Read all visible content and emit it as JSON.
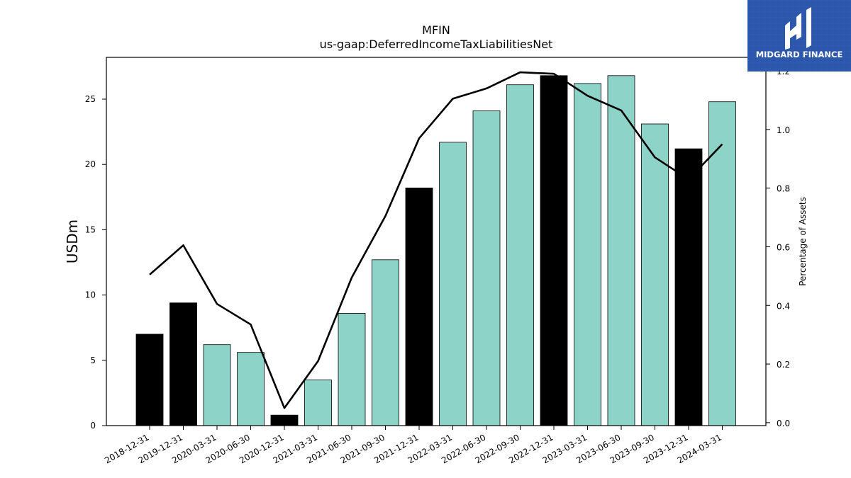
{
  "colors": {
    "annual_bar": "#000000",
    "quarter_bar": "#8dd3c7",
    "line": "#000000",
    "logo_bg": "#2b57ad",
    "logo_fg": "#ffffff"
  },
  "logo": {
    "text": "MIDGARD FINANCE",
    "icon": "midgard-logo-icon"
  },
  "chart_data": {
    "type": "bar",
    "title": "MFIN",
    "subtitle": "us-gaap:DeferredIncomeTaxLiabilitiesNet",
    "xlabel": "",
    "ylabel": "USDm",
    "y2label": "Percentage of Assets",
    "ylim": [
      0,
      28.2
    ],
    "y2lim": [
      -0.01,
      1.246
    ],
    "yticks": [
      0,
      5,
      10,
      15,
      20,
      25
    ],
    "y2ticks": [
      0.0,
      0.2,
      0.4,
      0.6,
      0.8,
      1.0,
      1.2
    ],
    "y2tick_labels": [
      "0.0",
      "0.2",
      "0.4",
      "0.6",
      "0.8",
      "1.0",
      "1.2"
    ],
    "grid": false,
    "categories": [
      "2018-12-31",
      "2019-12-31",
      "2020-03-31",
      "2020-06-30",
      "2020-12-31",
      "2021-03-31",
      "2021-06-30",
      "2021-09-30",
      "2021-12-31",
      "2022-03-31",
      "2022-06-30",
      "2022-09-30",
      "2022-12-31",
      "2023-03-31",
      "2023-06-30",
      "2023-09-30",
      "2023-12-31",
      "2024-03-31"
    ],
    "series": [
      {
        "kind": "bar",
        "axis": "left",
        "values": [
          7.0,
          9.4,
          6.2,
          5.6,
          0.8,
          3.5,
          8.6,
          12.7,
          18.2,
          21.7,
          24.1,
          26.1,
          26.8,
          26.2,
          26.8,
          23.1,
          21.2,
          24.8
        ],
        "annual": [
          true,
          true,
          false,
          false,
          true,
          false,
          false,
          false,
          true,
          false,
          false,
          false,
          true,
          false,
          false,
          false,
          true,
          false
        ]
      },
      {
        "kind": "line",
        "axis": "right",
        "values": [
          0.505,
          0.605,
          0.405,
          0.335,
          0.05,
          0.21,
          0.495,
          0.705,
          0.97,
          1.105,
          1.14,
          1.195,
          1.19,
          1.115,
          1.065,
          0.905,
          0.83,
          0.95
        ]
      }
    ]
  }
}
